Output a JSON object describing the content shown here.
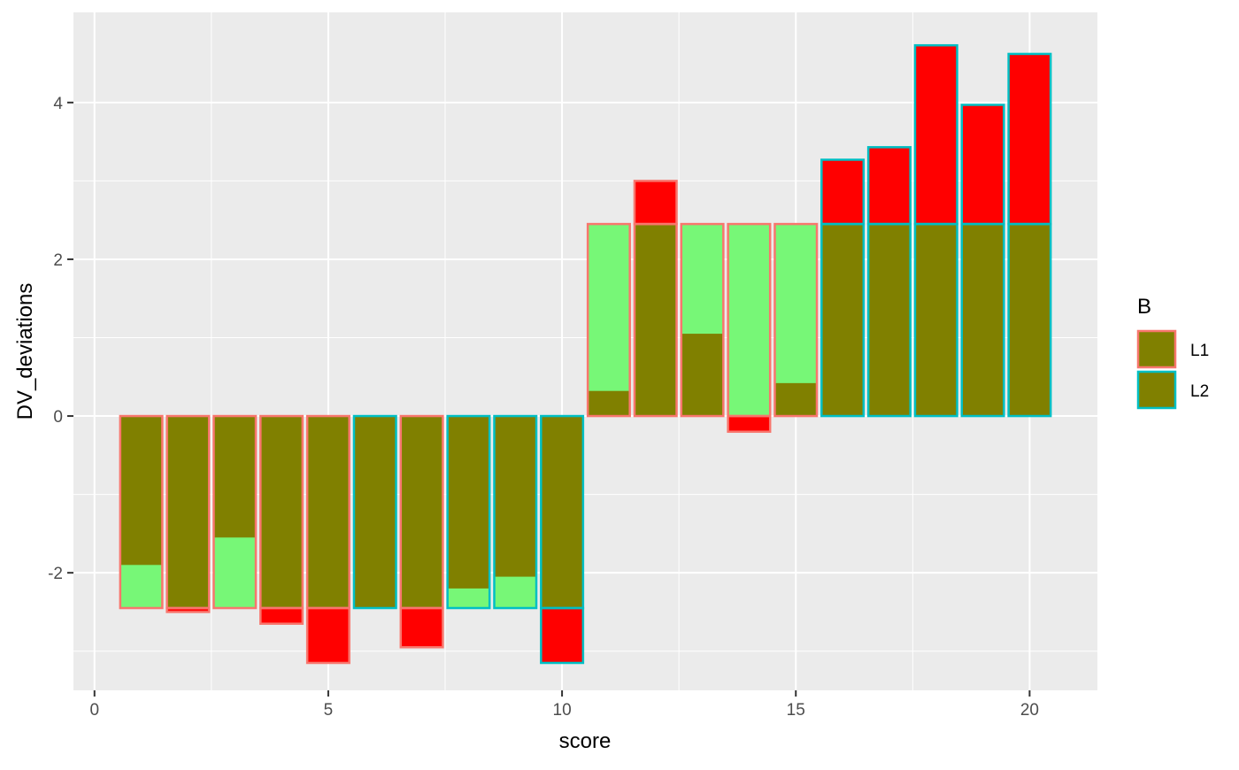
{
  "chart_data": {
    "type": "bar",
    "xlabel": "score",
    "ylabel": "DV_deviations",
    "xlim": [
      -0.45,
      21.45
    ],
    "ylim": [
      -3.5,
      5.15
    ],
    "x_ticks": [
      0,
      5,
      10,
      15,
      20
    ],
    "x_tick_labels": [
      "0",
      "5",
      "10",
      "15",
      "20"
    ],
    "x_minor_ticks": [
      2.5,
      7.5,
      12.5,
      17.5
    ],
    "y_ticks": [
      -2,
      0,
      2,
      4
    ],
    "y_tick_labels": [
      "-2",
      "0",
      "2",
      "4"
    ],
    "y_minor_ticks": [
      -3,
      -1,
      1,
      3
    ],
    "grid": true,
    "legend": {
      "title": "B",
      "position": "right",
      "entries": [
        {
          "label": "L1",
          "outline_color": "#F8766D"
        },
        {
          "label": "L2",
          "outline_color": "#00BFC4"
        }
      ]
    },
    "colors": {
      "panel_background": "#EBEBEB",
      "grid": "#FFFFFF",
      "bar_fill": "#808000",
      "residual_negative": "#FF0000",
      "residual_positive": "#77F777"
    },
    "bars": [
      {
        "score": 1,
        "group": "L1",
        "mean": -2.45,
        "value": -1.9
      },
      {
        "score": 2,
        "group": "L1",
        "mean": -2.45,
        "value": -2.5
      },
      {
        "score": 3,
        "group": "L1",
        "mean": -2.45,
        "value": -1.55
      },
      {
        "score": 4,
        "group": "L1",
        "mean": -2.45,
        "value": -2.65
      },
      {
        "score": 5,
        "group": "L1",
        "mean": -2.45,
        "value": -3.15
      },
      {
        "score": 6,
        "group": "L2",
        "mean": -2.45,
        "value": -2.45
      },
      {
        "score": 7,
        "group": "L1",
        "mean": -2.45,
        "value": -2.95
      },
      {
        "score": 8,
        "group": "L2",
        "mean": -2.45,
        "value": -2.2
      },
      {
        "score": 9,
        "group": "L2",
        "mean": -2.45,
        "value": -2.05
      },
      {
        "score": 10,
        "group": "L2",
        "mean": -2.45,
        "value": -3.15
      },
      {
        "score": 11,
        "group": "L1",
        "mean": 2.45,
        "value": 0.32
      },
      {
        "score": 12,
        "group": "L1",
        "mean": 2.45,
        "value": 3.0
      },
      {
        "score": 13,
        "group": "L1",
        "mean": 2.45,
        "value": 1.05
      },
      {
        "score": 14,
        "group": "L1",
        "mean": 2.45,
        "value": -0.2
      },
      {
        "score": 15,
        "group": "L1",
        "mean": 2.45,
        "value": 0.42
      },
      {
        "score": 16,
        "group": "L2",
        "mean": 2.45,
        "value": 3.27
      },
      {
        "score": 17,
        "group": "L2",
        "mean": 2.45,
        "value": 3.43
      },
      {
        "score": 18,
        "group": "L2",
        "mean": 2.45,
        "value": 4.73
      },
      {
        "score": 19,
        "group": "L2",
        "mean": 2.45,
        "value": 3.97
      },
      {
        "score": 20,
        "group": "L2",
        "mean": 2.45,
        "value": 4.62
      }
    ]
  }
}
